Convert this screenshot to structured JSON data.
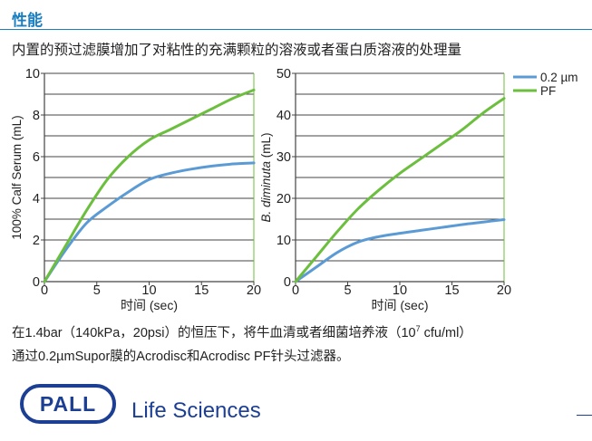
{
  "page": {
    "heading": "性能",
    "subtitle": "内置的预过滤膜增加了对粘性的充满颗粒的溶液或者蛋白质溶液的处理量",
    "note_line1_pre": "在1.4bar（140kPa，20psi）的恒压下，将牛血清或者细菌培养液（10",
    "note_line1_sup": "7",
    "note_line1_post": " cfu/ml）",
    "note_line2": "通过0.2µmSupor膜的Acrodisc和Acrodisc PF针头过滤器。",
    "brand_logo_text": "PALL",
    "brand_text": "Life Sciences"
  },
  "chart_data": [
    {
      "type": "line",
      "title": "",
      "xlabel": "时间 (sec)",
      "ylabel": "100% Calf Serum (mL)",
      "xlim": [
        0,
        20
      ],
      "ylim": [
        0,
        10
      ],
      "xticks": [
        0,
        5,
        10,
        15,
        20
      ],
      "yticks": [
        0,
        2,
        4,
        6,
        8,
        10
      ],
      "grid": true,
      "series": [
        {
          "name": "0.2 µm",
          "color": "#5b9bd5",
          "x": [
            0,
            2,
            4,
            6,
            8,
            10,
            12,
            14,
            16,
            18,
            20
          ],
          "y": [
            0,
            1.5,
            2.8,
            3.6,
            4.3,
            4.9,
            5.2,
            5.4,
            5.55,
            5.65,
            5.7
          ]
        },
        {
          "name": "PF",
          "color": "#6cbf3e",
          "x": [
            0,
            2,
            4,
            6,
            8,
            10,
            12,
            14,
            16,
            18,
            20
          ],
          "y": [
            0,
            1.7,
            3.4,
            4.9,
            6.0,
            6.8,
            7.3,
            7.8,
            8.3,
            8.8,
            9.2
          ]
        }
      ]
    },
    {
      "type": "line",
      "title": "",
      "xlabel": "时间 (sec)",
      "ylabel": "B. diminuta (mL)",
      "xlim": [
        0,
        20
      ],
      "ylim": [
        0,
        50
      ],
      "xticks": [
        0,
        5,
        10,
        15,
        20
      ],
      "yticks": [
        0,
        10,
        20,
        30,
        40,
        50
      ],
      "grid": true,
      "legend": "top-right",
      "series": [
        {
          "name": "0.2 µm",
          "color": "#5b9bd5",
          "x": [
            0,
            2,
            4,
            6,
            8,
            10,
            12,
            14,
            16,
            18,
            20
          ],
          "y": [
            0,
            3.5,
            7.0,
            9.5,
            10.8,
            11.6,
            12.3,
            13.0,
            13.7,
            14.3,
            14.9
          ]
        },
        {
          "name": "PF",
          "color": "#6cbf3e",
          "x": [
            0,
            2,
            4,
            6,
            8,
            10,
            12,
            14,
            16,
            18,
            20
          ],
          "y": [
            0,
            6.0,
            12.0,
            17.5,
            22.0,
            26.0,
            29.5,
            33.0,
            36.5,
            40.5,
            44.0
          ]
        }
      ]
    }
  ]
}
